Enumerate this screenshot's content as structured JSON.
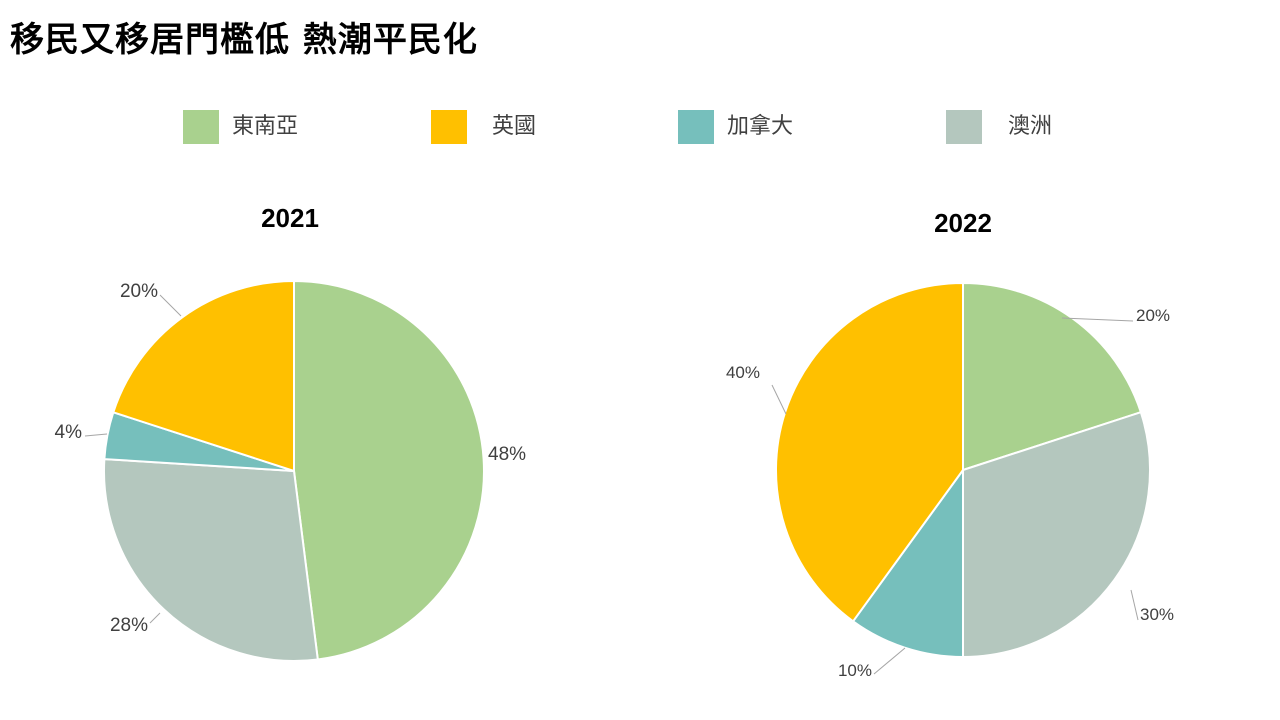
{
  "page": {
    "title": "移民又移居門檻低  熱潮平民化"
  },
  "legend": [
    {
      "label": "東南亞",
      "color": "#A9D18E"
    },
    {
      "label": "英國",
      "color": "#FFC000"
    },
    {
      "label": "加拿大",
      "color": "#76BFBC"
    },
    {
      "label": "澳洲",
      "color": "#B4C7BE"
    }
  ],
  "chart_data": [
    {
      "type": "pie",
      "title": "2021",
      "categories": [
        "東南亞",
        "澳洲",
        "加拿大",
        "英國"
      ],
      "values": [
        48,
        28,
        4,
        20
      ],
      "data_labels": [
        "48%",
        "28%",
        "4%",
        "20%"
      ],
      "colors": [
        "#A9D18E",
        "#B4C7BE",
        "#76BFBC",
        "#FFC000"
      ],
      "start_angle_deg": 0,
      "direction": "clockwise",
      "legend_position": "top"
    },
    {
      "type": "pie",
      "title": "2022",
      "categories": [
        "東南亞",
        "澳洲",
        "加拿大",
        "英國"
      ],
      "values": [
        20,
        30,
        10,
        40
      ],
      "data_labels": [
        "20%",
        "30%",
        "10%",
        "40%"
      ],
      "colors": [
        "#A9D18E",
        "#B4C7BE",
        "#76BFBC",
        "#FFC000"
      ],
      "start_angle_deg": 0,
      "direction": "clockwise",
      "legend_position": "top"
    }
  ]
}
